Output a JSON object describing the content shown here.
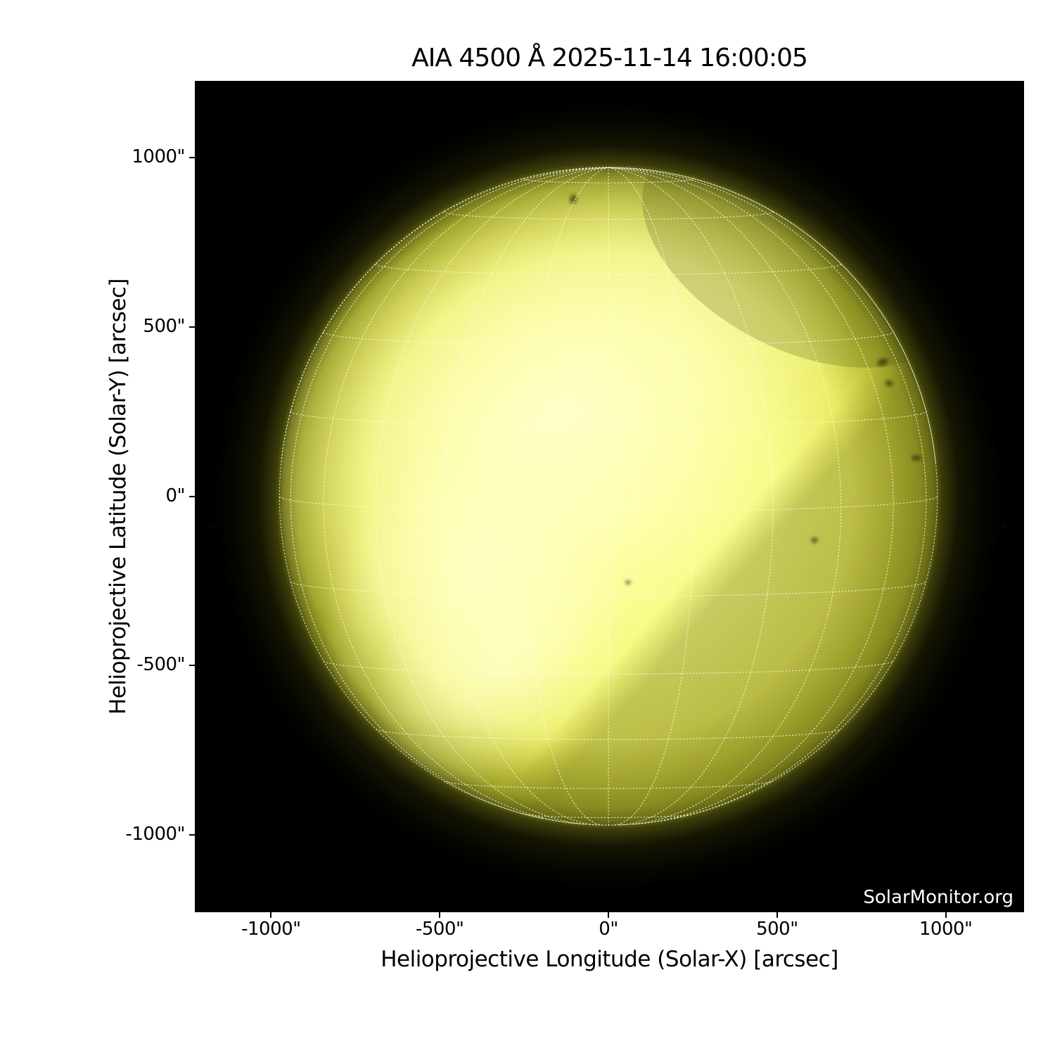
{
  "title": "AIA 4500 Å 2025-11-14 16:00:05",
  "watermark": "SolarMonitor.org",
  "axes": {
    "x": {
      "label": "Helioprojective Longitude (Solar-X) [arcsec]",
      "tick_labels": [
        "-1000\"",
        "-500\"",
        "0\"",
        "500\"",
        "1000\""
      ],
      "tick_values": [
        -1000,
        -500,
        0,
        500,
        1000
      ]
    },
    "y": {
      "label": "Helioprojective Latitude (Solar-Y) [arcsec]",
      "tick_labels": [
        "1000\"",
        "500\"",
        "0\"",
        "-500\"",
        "-1000\""
      ],
      "tick_values": [
        1000,
        500,
        0,
        -500,
        -1000
      ]
    }
  },
  "chart_data": {
    "type": "heatmap",
    "title": "AIA 4500 Å 2025-11-14 16:00:05",
    "xlabel": "Helioprojective Longitude (Solar-X) [arcsec]",
    "ylabel": "Helioprojective Latitude (Solar-Y) [arcsec]",
    "xlim": [
      -1226,
      1232
    ],
    "ylim": [
      -1229,
      1227
    ],
    "x_ticks": [
      -1000,
      -500,
      0,
      500,
      1000
    ],
    "y_ticks": [
      -1000,
      -500,
      0,
      500,
      1000
    ],
    "grid": "dotted heliographic lat/lon grid overlaid on disk",
    "legend": "none",
    "description": "Full-disk yellow continuum image of the Sun (AIA 4500 Å). Bright pale-yellow irregular band across upper-left/center and lower-center of the disk, darker olive limb shading, small dark spots near the east limb, black sky background, dotted white heliographic grid every 15 degrees.",
    "sun": {
      "center_arcsec": [
        0,
        0
      ],
      "radius_arcsec": 975,
      "grid_step_deg": 15,
      "b0_deg": 2.7
    }
  },
  "colors": {
    "page_bg": "#ffffff",
    "plot_bg": "#000000",
    "text": "#000000",
    "watermark_text": "#ffffff",
    "grid_line": "rgba(255,255,235,0.78)",
    "disk_core": "#fdff9c",
    "disk_inner": "#f7fa80",
    "disk_mid": "#e9ec63",
    "disk_outer": "#c3c63e",
    "limb_olive": "#9fa32a",
    "limb_dark": "#72751a",
    "limb_edge": "#3a3c0a",
    "glow_dark": "#151502",
    "bright_core": "rgba(255,255,205,0.95)",
    "bright_mid": "rgba(255,255,195,0.60)",
    "bright_none": "rgba(255,255,190,0)",
    "wedge_dark": "88,90,12",
    "ne_shade": "rgba(70,72,10,0.22)",
    "equator_band": "rgba(200,200,70,0.30)",
    "sunspot": "#1f1f06"
  }
}
